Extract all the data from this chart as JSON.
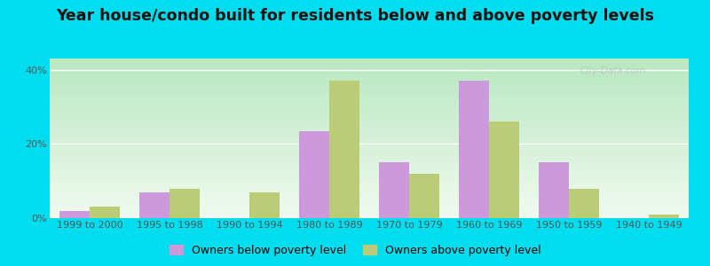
{
  "title": "Year house/condo built for residents below and above poverty levels",
  "categories": [
    "1999 to 2000",
    "1995 to 1998",
    "1990 to 1994",
    "1980 to 1989",
    "1970 to 1979",
    "1960 to 1969",
    "1950 to 1959",
    "1940 to 1949"
  ],
  "below_poverty": [
    2.0,
    7.0,
    0.0,
    23.5,
    15.0,
    37.0,
    15.0,
    0.0
  ],
  "above_poverty": [
    3.0,
    8.0,
    7.0,
    37.0,
    12.0,
    26.0,
    8.0,
    1.0
  ],
  "below_color": "#cc99dd",
  "above_color": "#bbcc77",
  "ylim": [
    0,
    43
  ],
  "yticks": [
    0,
    20,
    40
  ],
  "ytick_labels": [
    "0%",
    "20%",
    "40%"
  ],
  "legend_below": "Owners below poverty level",
  "legend_above": "Owners above poverty level",
  "bg_top_color": "#b8e8c0",
  "bg_bottom_color": "#f0faf0",
  "outer_bg": "#00ddee",
  "bar_width": 0.38,
  "title_fontsize": 12.5,
  "label_fontsize": 8.0,
  "legend_fontsize": 9.0,
  "watermark": "City-Data.com"
}
